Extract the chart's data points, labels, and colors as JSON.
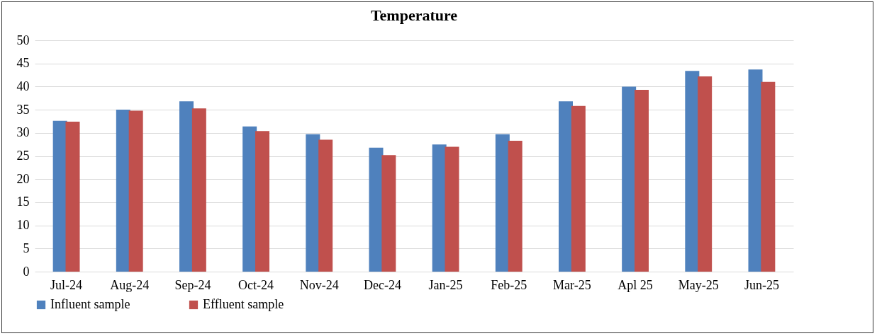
{
  "chart_data": {
    "type": "bar",
    "title": "Temperature",
    "categories": [
      "Jul-24",
      "Aug-24",
      "Sep-24",
      "Oct-24",
      "Nov-24",
      "Dec-24",
      "Jan-25",
      "Feb-25",
      "Mar-25",
      "Apl 25",
      "May-25",
      "Jun-25"
    ],
    "series": [
      {
        "name": "Influent sample",
        "color": "#4f81bd",
        "values": [
          32.6,
          35.0,
          36.8,
          31.4,
          29.7,
          26.8,
          27.5,
          29.7,
          36.8,
          40.0,
          43.4,
          43.7
        ]
      },
      {
        "name": "Effluent sample",
        "color": "#c0504d",
        "values": [
          32.4,
          34.8,
          35.3,
          30.4,
          28.5,
          25.2,
          27.0,
          28.3,
          35.8,
          39.3,
          42.2,
          41.0
        ]
      }
    ],
    "ylim": [
      0,
      50
    ],
    "yticks": [
      0,
      5,
      10,
      15,
      20,
      25,
      30,
      35,
      40,
      45,
      50
    ],
    "grid": "y",
    "legend": "bottom"
  }
}
